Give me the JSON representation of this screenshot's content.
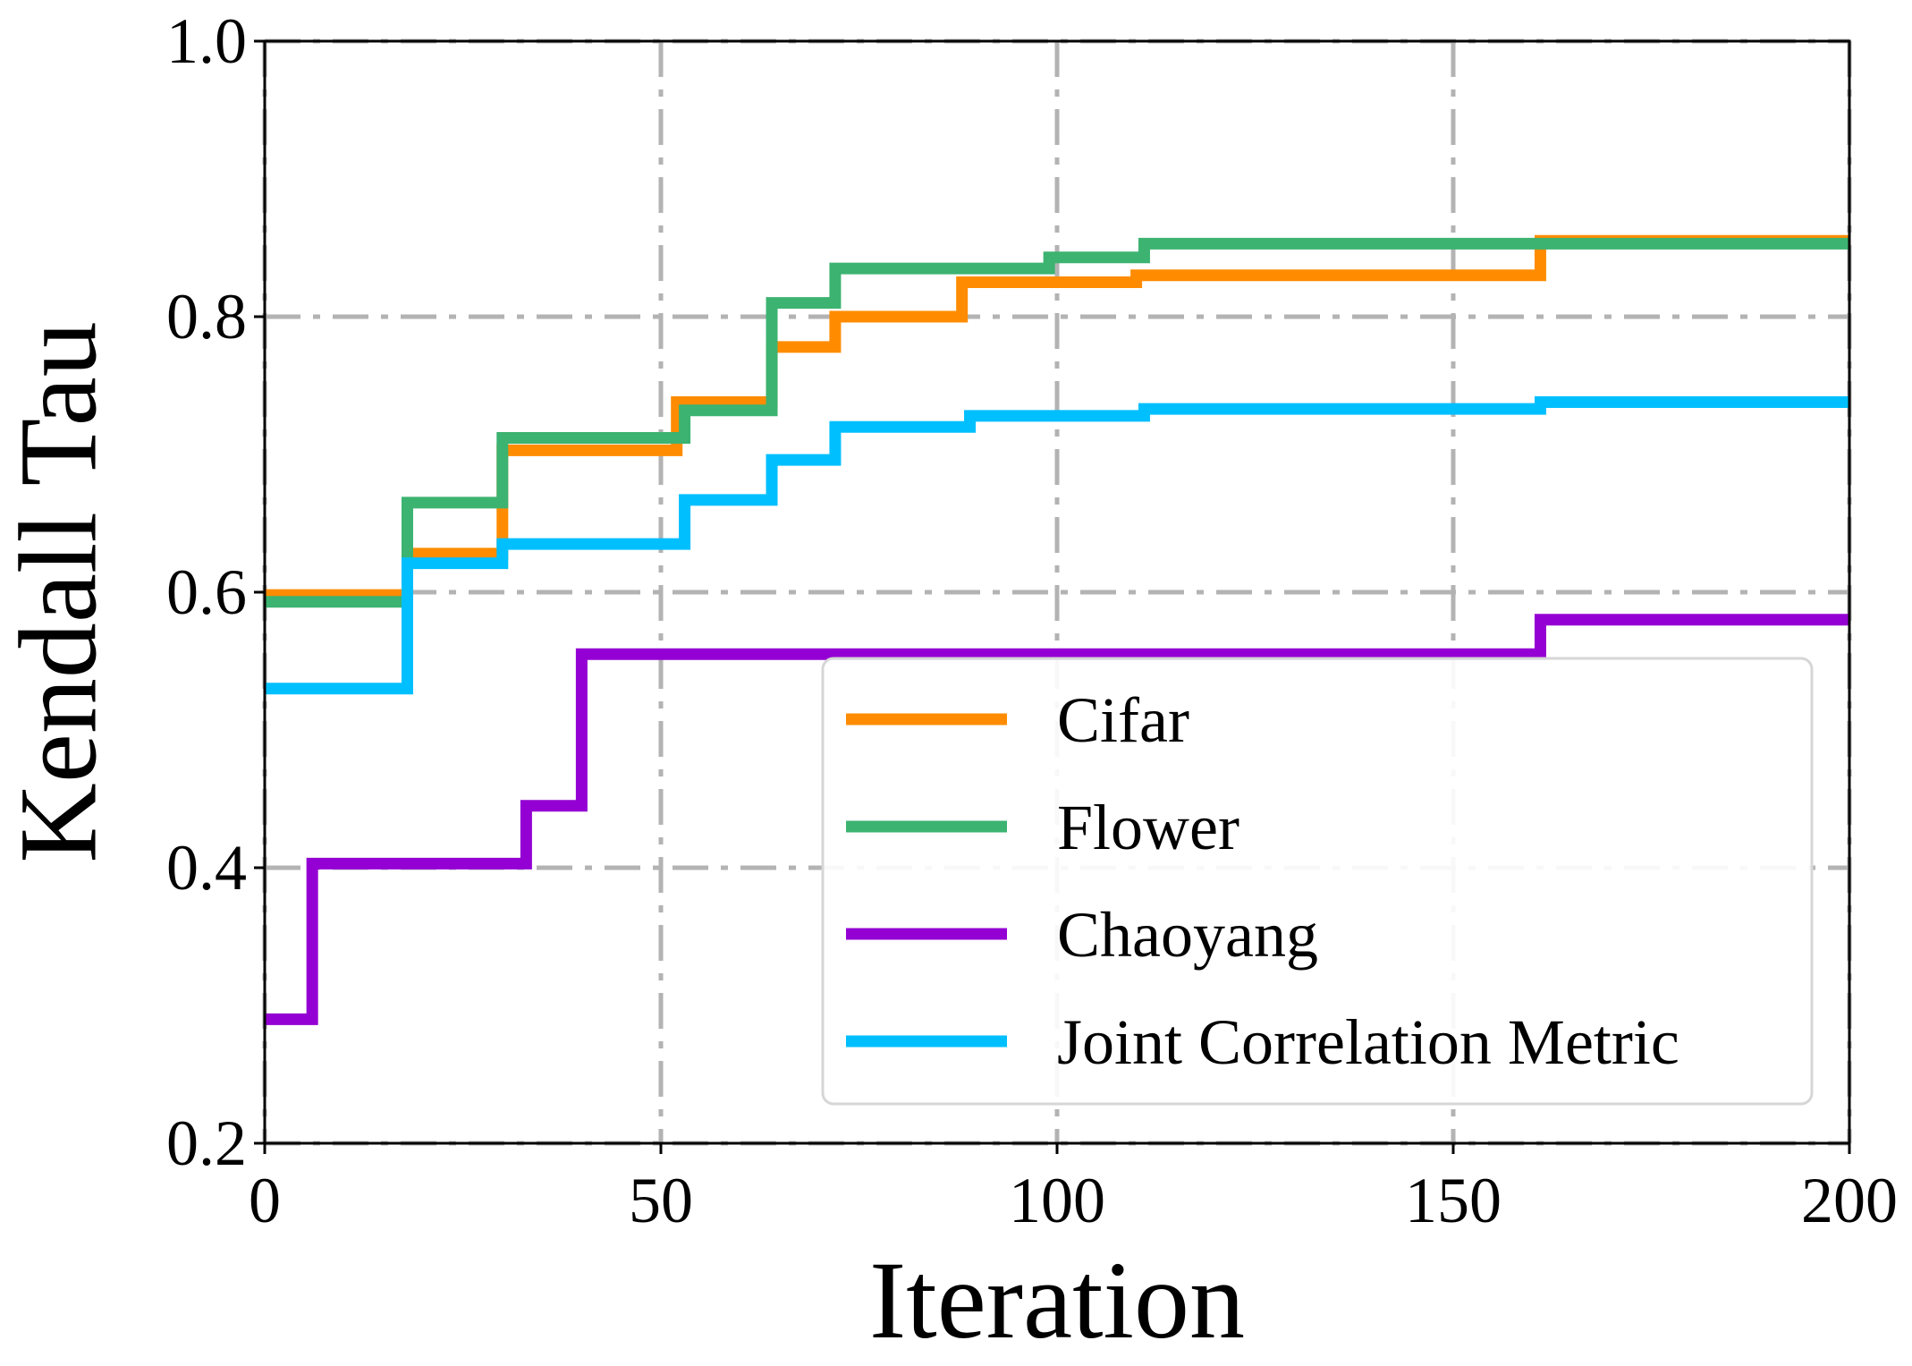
{
  "chart_data": {
    "type": "line",
    "step": "post",
    "xlabel": "Iteration",
    "ylabel": "Kendall Tau",
    "xlim": [
      0,
      200
    ],
    "ylim": [
      0.2,
      1.0
    ],
    "xticks": [
      0,
      50,
      100,
      150,
      200
    ],
    "yticks": [
      0.2,
      0.4,
      0.6,
      0.8,
      1.0
    ],
    "xtick_labels": [
      "0",
      "50",
      "100",
      "150",
      "200"
    ],
    "ytick_labels": [
      "0.2",
      "0.4",
      "0.6",
      "0.8",
      "1.0"
    ],
    "grid": true,
    "legend_position": "lower-right",
    "series": [
      {
        "name": "Cifar",
        "color": "#FF8C00",
        "x": [
          0,
          18,
          30,
          52,
          64,
          70,
          72,
          87,
          88,
          110,
          160,
          161,
          200
        ],
        "y": [
          0.598,
          0.628,
          0.703,
          0.738,
          0.778,
          0.778,
          0.8,
          0.8,
          0.825,
          0.83,
          0.83,
          0.855,
          0.855
        ]
      },
      {
        "name": "Flower",
        "color": "#3CB371",
        "x": [
          0,
          17,
          18,
          29,
          30,
          52,
          53,
          63,
          64,
          71,
          72,
          98,
          99,
          110,
          111,
          200
        ],
        "y": [
          0.593,
          0.593,
          0.665,
          0.665,
          0.712,
          0.712,
          0.732,
          0.732,
          0.81,
          0.81,
          0.835,
          0.835,
          0.843,
          0.843,
          0.853,
          0.853
        ]
      },
      {
        "name": "Chaoyang",
        "color": "#9400D3",
        "x": [
          0,
          5,
          6,
          32,
          33,
          39,
          40,
          160,
          161,
          200
        ],
        "y": [
          0.29,
          0.29,
          0.403,
          0.403,
          0.445,
          0.445,
          0.555,
          0.555,
          0.58,
          0.58
        ]
      },
      {
        "name": "Joint Correlation Metric",
        "color": "#00BFFF",
        "x": [
          0,
          17,
          18,
          29,
          30,
          52,
          53,
          63,
          64,
          71,
          72,
          88,
          89,
          110,
          111,
          160,
          161,
          200
        ],
        "y": [
          0.53,
          0.53,
          0.621,
          0.621,
          0.635,
          0.635,
          0.667,
          0.667,
          0.696,
          0.696,
          0.72,
          0.72,
          0.728,
          0.728,
          0.733,
          0.733,
          0.738,
          0.738
        ]
      }
    ]
  }
}
